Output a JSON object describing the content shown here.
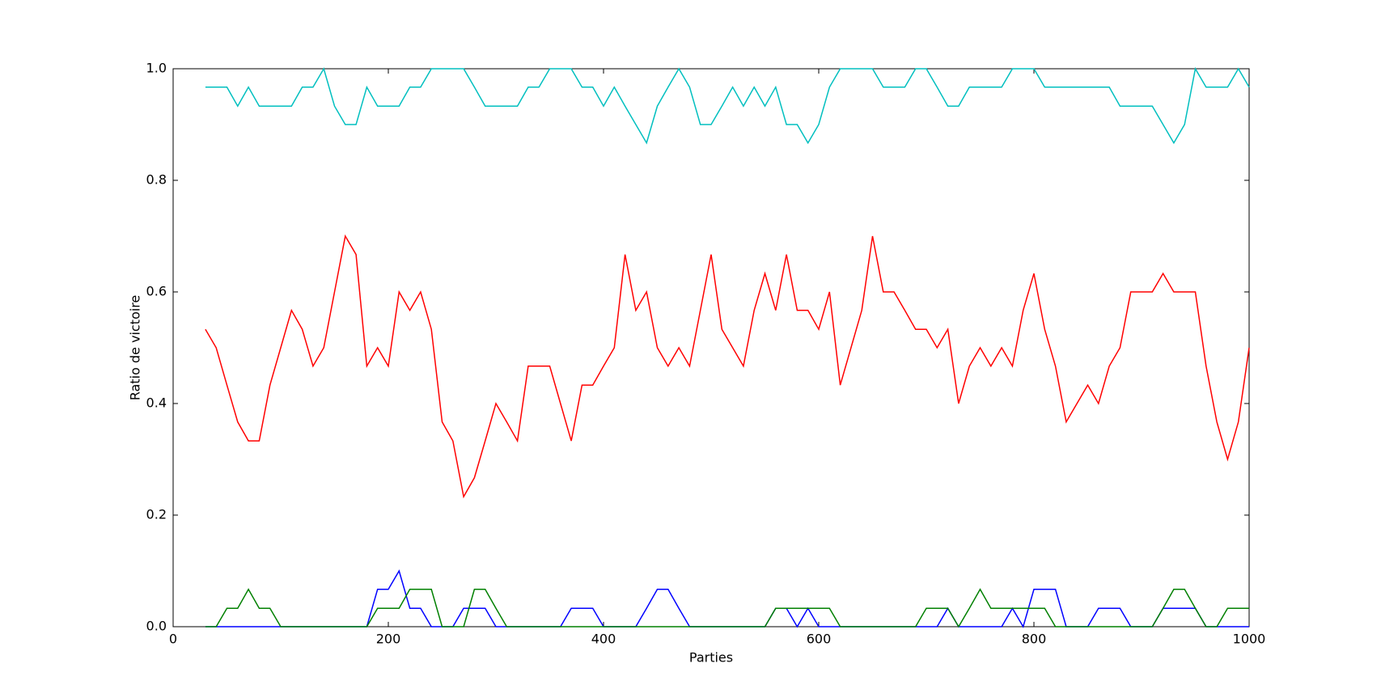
{
  "chart_data": {
    "type": "line",
    "x_label": "Parties",
    "y_label": "Ratio de victoire",
    "xlim": [
      0,
      1000
    ],
    "xticks": [
      0,
      200,
      400,
      600,
      800,
      1000
    ],
    "ylim": [
      0,
      1
    ],
    "yticks": [
      {
        "value": 0,
        "label": "0.0"
      },
      0.2,
      0.4,
      0.6,
      0.8,
      {
        "value": 1,
        "label": "1.0"
      }
    ],
    "x": [
      30,
      40,
      50,
      60,
      70,
      80,
      90,
      100,
      110,
      120,
      130,
      140,
      150,
      160,
      170,
      180,
      190,
      200,
      210,
      220,
      230,
      240,
      250,
      260,
      270,
      280,
      290,
      300,
      310,
      320,
      330,
      340,
      350,
      360,
      370,
      380,
      390,
      400,
      410,
      420,
      430,
      440,
      450,
      460,
      470,
      480,
      490,
      500,
      510,
      520,
      530,
      540,
      550,
      560,
      570,
      580,
      590,
      600,
      610,
      620,
      630,
      640,
      650,
      660,
      670,
      680,
      690,
      700,
      710,
      720,
      730,
      740,
      750,
      760,
      770,
      780,
      790,
      800,
      810,
      820,
      830,
      840,
      850,
      860,
      870,
      880,
      890,
      900,
      910,
      920,
      930,
      940,
      950,
      960,
      970,
      980,
      990,
      1000
    ],
    "series": [
      {
        "color": "#00bfbf",
        "values": [
          0.967,
          0.967,
          0.967,
          0.933,
          0.967,
          0.933,
          0.933,
          0.933,
          0.933,
          0.967,
          0.967,
          1,
          0.933,
          0.9,
          0.9,
          0.967,
          0.933,
          0.933,
          0.933,
          0.967,
          0.967,
          1,
          1,
          1,
          1,
          0.967,
          0.933,
          0.933,
          0.933,
          0.933,
          0.967,
          0.967,
          1,
          1,
          1,
          0.967,
          0.967,
          0.933,
          0.967,
          0.933,
          0.9,
          0.867,
          0.933,
          0.967,
          1,
          0.967,
          0.9,
          0.9,
          0.933,
          0.967,
          0.933,
          0.967,
          0.933,
          0.967,
          0.9,
          0.9,
          0.867,
          0.9,
          0.967,
          1,
          1,
          1,
          1,
          0.967,
          0.967,
          0.967,
          1,
          1,
          0.967,
          0.933,
          0.933,
          0.967,
          0.967,
          0.967,
          0.967,
          1,
          1,
          1,
          0.967,
          0.967,
          0.967,
          0.967,
          0.967,
          0.967,
          0.967,
          0.933,
          0.933,
          0.933,
          0.933,
          0.9,
          0.867,
          0.9,
          1,
          0.967,
          0.967,
          0.967,
          1,
          0.967
        ]
      },
      {
        "color": "#ff0000",
        "values": [
          0.533,
          0.5,
          0.433,
          0.367,
          0.333,
          0.333,
          0.433,
          0.5,
          0.567,
          0.533,
          0.467,
          0.5,
          0.6,
          0.7,
          0.667,
          0.467,
          0.5,
          0.467,
          0.6,
          0.567,
          0.6,
          0.533,
          0.367,
          0.333,
          0.233,
          0.267,
          0.333,
          0.4,
          0.367,
          0.333,
          0.467,
          0.467,
          0.467,
          0.4,
          0.333,
          0.433,
          0.433,
          0.467,
          0.5,
          0.667,
          0.567,
          0.6,
          0.5,
          0.467,
          0.5,
          0.467,
          0.567,
          0.667,
          0.533,
          0.5,
          0.467,
          0.567,
          0.633,
          0.567,
          0.667,
          0.567,
          0.567,
          0.533,
          0.6,
          0.433,
          0.5,
          0.567,
          0.7,
          0.6,
          0.6,
          0.567,
          0.533,
          0.533,
          0.5,
          0.533,
          0.4,
          0.467,
          0.5,
          0.467,
          0.5,
          0.467,
          0.567,
          0.633,
          0.533,
          0.467,
          0.367,
          0.4,
          0.433,
          0.4,
          0.467,
          0.5,
          0.6,
          0.6,
          0.6,
          0.633,
          0.6,
          0.6,
          0.6,
          0.467,
          0.367,
          0.3,
          0.367,
          0.5
        ]
      },
      {
        "color": "#0000ff",
        "values": [
          0,
          0,
          0,
          0,
          0,
          0,
          0,
          0,
          0,
          0,
          0,
          0,
          0,
          0,
          0,
          0,
          0.067,
          0.067,
          0.1,
          0.033,
          0.033,
          0,
          0,
          0,
          0.033,
          0.033,
          0.033,
          0,
          0,
          0,
          0,
          0,
          0,
          0,
          0.033,
          0.033,
          0.033,
          0,
          0,
          0,
          0,
          0.033,
          0.067,
          0.067,
          0.033,
          0,
          0,
          0,
          0,
          0,
          0,
          0,
          0,
          0.033,
          0.033,
          0,
          0.033,
          0,
          0,
          0,
          0,
          0,
          0,
          0,
          0,
          0,
          0,
          0,
          0,
          0.033,
          0,
          0,
          0,
          0,
          0,
          0.033,
          0,
          0.067,
          0.067,
          0.067,
          0,
          0,
          0,
          0.033,
          0.033,
          0.033,
          0,
          0,
          0,
          0.033,
          0.033,
          0.033,
          0.033,
          0,
          0,
          0,
          0,
          0
        ]
      },
      {
        "color": "#008000",
        "values": [
          0,
          0,
          0.033,
          0.033,
          0.067,
          0.033,
          0.033,
          0,
          0,
          0,
          0,
          0,
          0,
          0,
          0,
          0,
          0.033,
          0.033,
          0.033,
          0.067,
          0.067,
          0.067,
          0,
          0,
          0,
          0.067,
          0.067,
          0.033,
          0,
          0,
          0,
          0,
          0,
          0,
          0,
          0,
          0,
          0,
          0,
          0,
          0,
          0,
          0,
          0,
          0,
          0,
          0,
          0,
          0,
          0,
          0,
          0,
          0,
          0.033,
          0.033,
          0.033,
          0.033,
          0.033,
          0.033,
          0,
          0,
          0,
          0,
          0,
          0,
          0,
          0,
          0.033,
          0.033,
          0.033,
          0,
          0.033,
          0.067,
          0.033,
          0.033,
          0.033,
          0.033,
          0.033,
          0.033,
          0,
          0,
          0,
          0,
          0,
          0,
          0,
          0,
          0,
          0,
          0.033,
          0.067,
          0.067,
          0.033,
          0,
          0,
          0.033,
          0.033,
          0.033
        ]
      }
    ]
  }
}
